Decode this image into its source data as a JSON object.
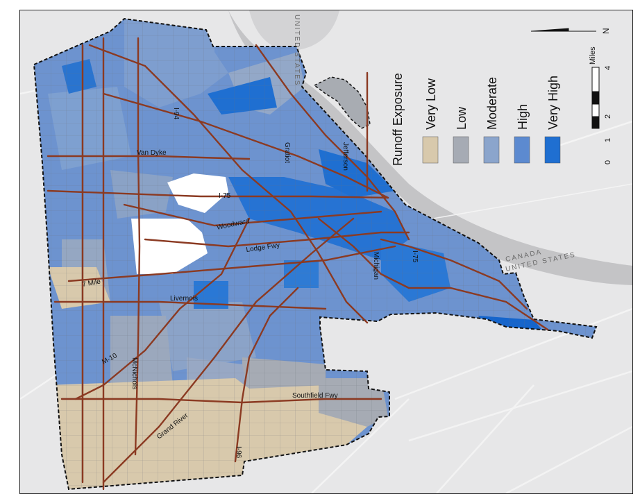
{
  "legend": {
    "title": "Runoff Exposure",
    "classes": [
      {
        "label": "Very Low",
        "color": "#d8c9ac"
      },
      {
        "label": "Low",
        "color": "#a6abb4"
      },
      {
        "label": "Moderate",
        "color": "#8ba5cc"
      },
      {
        "label": "High",
        "color": "#5c8ad0"
      },
      {
        "label": "Very High",
        "color": "#1f6fd1"
      }
    ]
  },
  "scale_bar": {
    "unit": "Miles",
    "ticks": [
      "0",
      "1",
      "2",
      "4"
    ]
  },
  "north_arrow": {
    "label": "N"
  },
  "countries": {
    "canada": "CANADA",
    "united_states": "UNITED STATES",
    "united_states_top": "UNITED STATES"
  },
  "roads": {
    "i94": "I-94",
    "gratiot": "Gratiot",
    "jefferson": "Jefferson",
    "van_dyke": "Van Dyke",
    "i75_north": "I-75",
    "woodward": "Woodward",
    "lodge": "Lodge Fwy",
    "seven_mile": "7 Mile",
    "livernois": "Livernois",
    "michigan": "Michigan",
    "i75_south": "I-75",
    "m10": "M-10",
    "mcnichols": "McNichols",
    "southfield": "Southfield Fwy",
    "grand_river": "Grand River",
    "i96": "I-96"
  }
}
